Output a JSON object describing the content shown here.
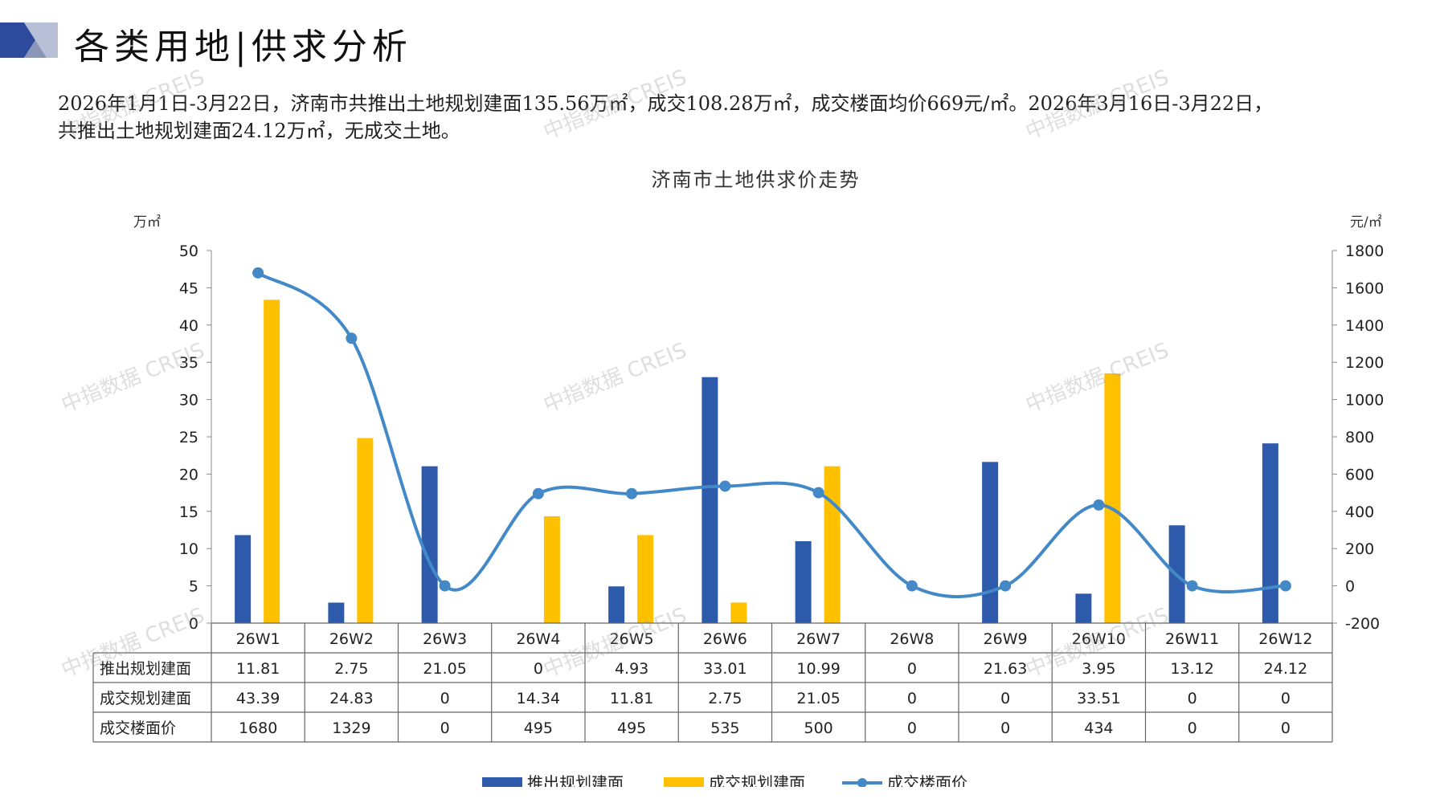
{
  "page": {
    "title": "各类用地|供求分析",
    "summary_line1": "2026年1月1日-3月22日，济南市共推出土地规划建面135.56万㎡，成交108.28万㎡，成交楼面均价669元/㎡。2026年3月16日-3月22日，",
    "summary_line2": "共推出土地规划建面24.12万㎡，无成交土地。",
    "watermark": "中指数据 CREIS"
  },
  "colors": {
    "supply": "#2E5AAC",
    "deal": "#FFC000",
    "price": "#4389C8",
    "deco_dark": "#2E4A9C",
    "deco_light": "#B8C0D8"
  },
  "chart_data": {
    "type": "bar",
    "title": "济南市土地供求价走势",
    "y_left_unit": "万㎡",
    "y_right_unit": "元/㎡",
    "ylim_left": [
      0,
      50
    ],
    "ylim_right": [
      -200,
      1800
    ],
    "y_left_ticks": [
      0,
      5,
      10,
      15,
      20,
      25,
      30,
      35,
      40,
      45,
      50
    ],
    "y_right_ticks": [
      -200,
      0,
      200,
      400,
      600,
      800,
      1000,
      1200,
      1400,
      1600,
      1800
    ],
    "categories": [
      "26W1",
      "26W2",
      "26W3",
      "26W4",
      "26W5",
      "26W6",
      "26W7",
      "26W8",
      "26W9",
      "26W10",
      "26W11",
      "26W12"
    ],
    "series": [
      {
        "name": "推出规划建面",
        "kind": "bar",
        "axis": "left",
        "labels": [
          "11.81",
          "2.75",
          "21.05",
          "0",
          "4.93",
          "33.01",
          "10.99",
          "0",
          "21.63",
          "3.95",
          "13.12",
          "24.12"
        ],
        "values": [
          11.81,
          2.75,
          21.05,
          0,
          4.93,
          33.01,
          10.99,
          0,
          21.63,
          3.95,
          13.12,
          24.12
        ]
      },
      {
        "name": "成交规划建面",
        "kind": "bar",
        "axis": "left",
        "labels": [
          "43.39",
          "24.83",
          "0",
          "14.34",
          "11.81",
          "2.75",
          "21.05",
          "0",
          "0",
          "33.51",
          "0",
          "0"
        ],
        "values": [
          43.39,
          24.83,
          0,
          14.34,
          11.81,
          2.75,
          21.05,
          0,
          0,
          33.51,
          0,
          0
        ]
      },
      {
        "name": "成交楼面价",
        "kind": "line",
        "axis": "right",
        "labels": [
          "1680",
          "1329",
          "0",
          "495",
          "495",
          "535",
          "500",
          "0",
          "0",
          "434",
          "0",
          "0"
        ],
        "values": [
          1680,
          1329,
          0,
          495,
          495,
          535,
          500,
          0,
          0,
          434,
          0,
          0
        ]
      }
    ],
    "legend_position": "bottom"
  }
}
